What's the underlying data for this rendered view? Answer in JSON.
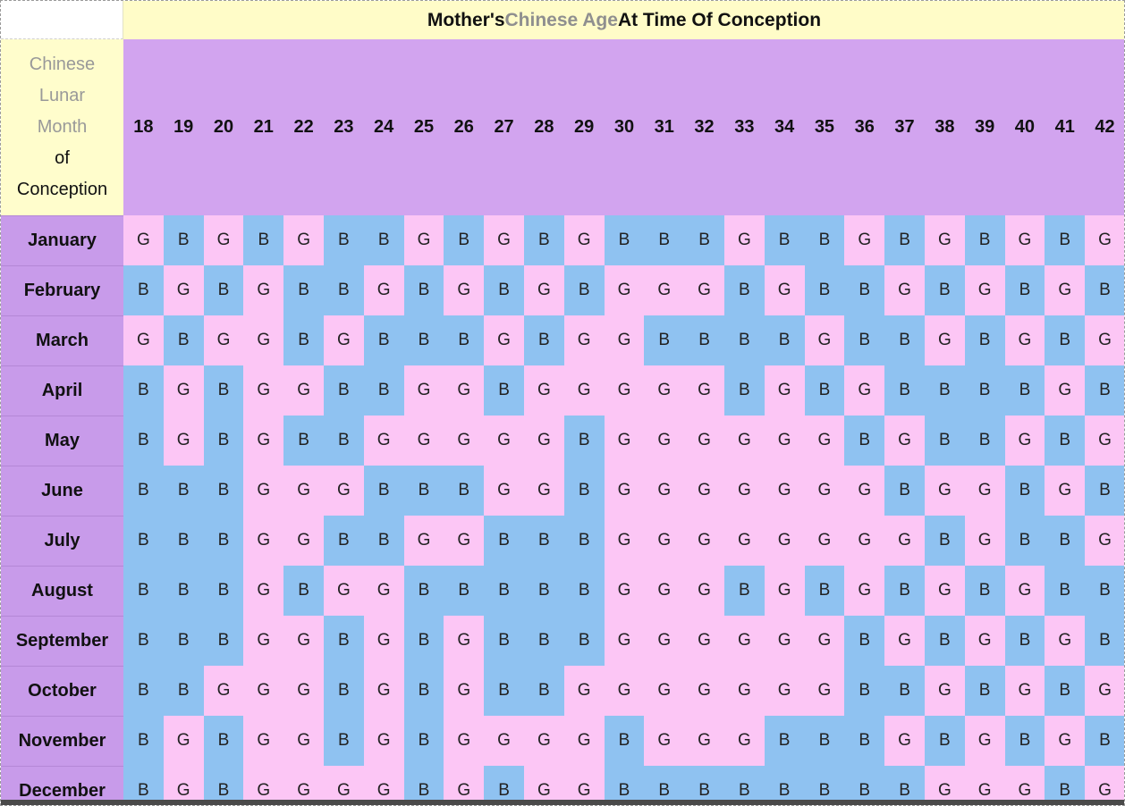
{
  "title": {
    "part1": "Mother's ",
    "part2": "Chinese Age",
    "part3": " At Time Of Conception"
  },
  "row_label": {
    "line1": "Chinese",
    "line2": "Lunar",
    "line3": "Month",
    "line4": "of",
    "line5": "Conception"
  },
  "ages": [
    "18",
    "19",
    "20",
    "21",
    "22",
    "23",
    "24",
    "25",
    "26",
    "27",
    "28",
    "29",
    "30",
    "31",
    "32",
    "33",
    "34",
    "35",
    "36",
    "37",
    "38",
    "39",
    "40",
    "41",
    "42"
  ],
  "months": [
    "January",
    "February",
    "March",
    "April",
    "May",
    "June",
    "July",
    "August",
    "September",
    "October",
    "November",
    "December"
  ],
  "rows": [
    [
      "G",
      "B",
      "G",
      "B",
      "G",
      "B",
      "B",
      "G",
      "B",
      "G",
      "B",
      "G",
      "B",
      "B",
      "B",
      "G",
      "B",
      "B",
      "G",
      "B",
      "G",
      "B",
      "G",
      "B",
      "G"
    ],
    [
      "B",
      "G",
      "B",
      "G",
      "B",
      "B",
      "G",
      "B",
      "G",
      "B",
      "G",
      "B",
      "G",
      "G",
      "G",
      "B",
      "G",
      "B",
      "B",
      "G",
      "B",
      "G",
      "B",
      "G",
      "B"
    ],
    [
      "G",
      "B",
      "G",
      "G",
      "B",
      "G",
      "B",
      "B",
      "B",
      "G",
      "B",
      "G",
      "G",
      "B",
      "B",
      "B",
      "B",
      "G",
      "B",
      "B",
      "G",
      "B",
      "G",
      "B",
      "G"
    ],
    [
      "B",
      "G",
      "B",
      "G",
      "G",
      "B",
      "B",
      "G",
      "G",
      "B",
      "G",
      "G",
      "G",
      "G",
      "G",
      "B",
      "G",
      "B",
      "G",
      "B",
      "B",
      "B",
      "B",
      "G",
      "B"
    ],
    [
      "B",
      "G",
      "B",
      "G",
      "B",
      "B",
      "G",
      "G",
      "G",
      "G",
      "G",
      "B",
      "G",
      "G",
      "G",
      "G",
      "G",
      "G",
      "B",
      "G",
      "B",
      "B",
      "G",
      "B",
      "G"
    ],
    [
      "B",
      "B",
      "B",
      "G",
      "G",
      "G",
      "B",
      "B",
      "B",
      "G",
      "G",
      "B",
      "G",
      "G",
      "G",
      "G",
      "G",
      "G",
      "G",
      "B",
      "G",
      "G",
      "B",
      "G",
      "B"
    ],
    [
      "B",
      "B",
      "B",
      "G",
      "G",
      "B",
      "B",
      "G",
      "G",
      "B",
      "B",
      "B",
      "G",
      "G",
      "G",
      "G",
      "G",
      "G",
      "G",
      "G",
      "B",
      "G",
      "B",
      "B",
      "G"
    ],
    [
      "B",
      "B",
      "B",
      "G",
      "B",
      "G",
      "G",
      "B",
      "B",
      "B",
      "B",
      "B",
      "G",
      "G",
      "G",
      "B",
      "G",
      "B",
      "G",
      "B",
      "G",
      "B",
      "G",
      "B",
      "B"
    ],
    [
      "B",
      "B",
      "B",
      "G",
      "G",
      "B",
      "G",
      "B",
      "G",
      "B",
      "B",
      "B",
      "G",
      "G",
      "G",
      "G",
      "G",
      "G",
      "B",
      "G",
      "B",
      "G",
      "B",
      "G",
      "B"
    ],
    [
      "B",
      "B",
      "G",
      "G",
      "G",
      "B",
      "G",
      "B",
      "G",
      "B",
      "B",
      "G",
      "G",
      "G",
      "G",
      "G",
      "G",
      "G",
      "B",
      "B",
      "G",
      "B",
      "G",
      "B",
      "G"
    ],
    [
      "B",
      "G",
      "B",
      "G",
      "G",
      "B",
      "G",
      "B",
      "G",
      "G",
      "G",
      "G",
      "B",
      "G",
      "G",
      "G",
      "B",
      "B",
      "B",
      "G",
      "B",
      "G",
      "B",
      "G",
      "B"
    ],
    [
      "B",
      "G",
      "B",
      "G",
      "G",
      "G",
      "G",
      "B",
      "G",
      "B",
      "G",
      "G",
      "B",
      "B",
      "B",
      "B",
      "B",
      "B",
      "B",
      "B",
      "G",
      "G",
      "G",
      "B",
      "G"
    ]
  ],
  "colors": {
    "boy": "#8fc2f1",
    "girl": "#fcc6f5",
    "header": "#d2a4ef",
    "month_column": "#c89bea",
    "title_bg": "#fffcc8"
  }
}
